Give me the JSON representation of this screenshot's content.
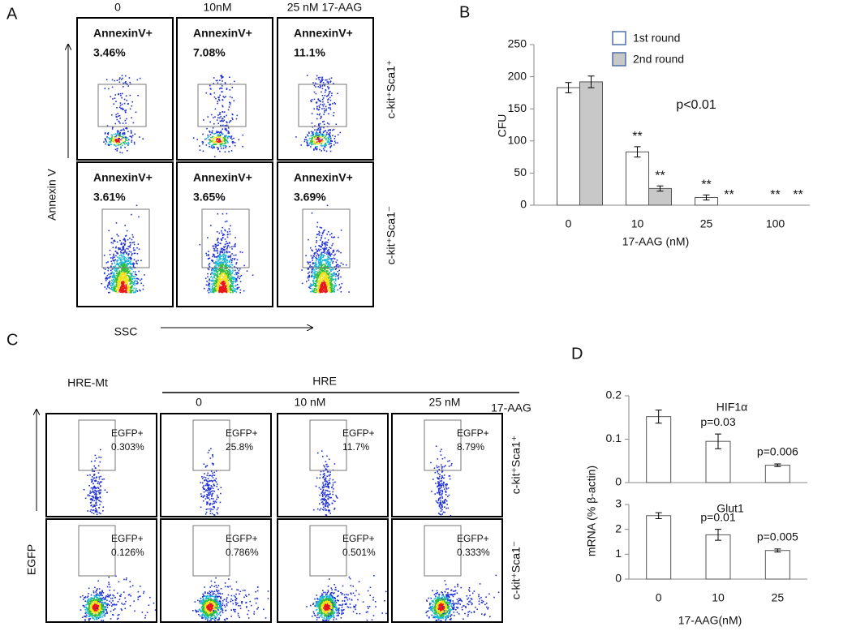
{
  "panel_labels": {
    "a": "A",
    "b": "B",
    "c": "C",
    "d": "D"
  },
  "panel_a": {
    "column_labels": [
      "0",
      "10nM",
      "25 nM 17-AAG"
    ],
    "row_labels": [
      "c-kit⁺Sca1⁺",
      "c-kit⁺Sca1⁻"
    ],
    "y_label": "Annexin V",
    "x_label": "SSC",
    "gates": [
      [
        {
          "label": "AnnexinV+",
          "percent": "3.46%"
        },
        {
          "label": "AnnexinV+",
          "percent": "7.08%"
        },
        {
          "label": "AnnexinV+",
          "percent": "11.1%"
        }
      ],
      [
        {
          "label": "AnnexinV+",
          "percent": "3.61%"
        },
        {
          "label": "AnnexinV+",
          "percent": "3.65%"
        },
        {
          "label": "AnnexinV+",
          "percent": "3.69%"
        }
      ]
    ]
  },
  "panel_c": {
    "group_labels": [
      "HRE-Mt",
      "HRE"
    ],
    "column_labels": [
      "0",
      "10 nM",
      "25 nM"
    ],
    "treatment_label": "17-AAG",
    "row_labels": [
      "c-kit⁺Sca1⁺",
      "c-kit⁺Sca1⁻"
    ],
    "y_label": "EGFP",
    "gates": [
      [
        {
          "label": "EGFP+",
          "percent": "0.303%"
        },
        {
          "label": "EGFP+",
          "percent": "25.8%"
        },
        {
          "label": "EGFP+",
          "percent": "11.7%"
        },
        {
          "label": "EGFP+",
          "percent": "8.79%"
        }
      ],
      [
        {
          "label": "EGFP+",
          "percent": "0.126%"
        },
        {
          "label": "EGFP+",
          "percent": "0.786%"
        },
        {
          "label": "EGFP+",
          "percent": "0.501%"
        },
        {
          "label": "EGFP+",
          "percent": "0.333%"
        }
      ]
    ]
  },
  "chart_data": [
    {
      "type": "bar",
      "y_label": "CFU",
      "x_label": "17-AAG (nM)",
      "annotation": "p<0.01",
      "categories": [
        "0",
        "10",
        "25",
        "100"
      ],
      "series": [
        {
          "name": "1st round",
          "color": "#ffffff",
          "values": [
            183,
            83,
            12,
            0
          ],
          "errors": [
            8,
            8,
            4,
            0
          ],
          "marks": [
            null,
            "**",
            "**",
            "**"
          ]
        },
        {
          "name": "2nd round",
          "color": "#c8c8c8",
          "values": [
            192,
            26,
            0,
            0
          ],
          "errors": [
            9,
            4,
            0,
            0
          ],
          "marks": [
            null,
            "**",
            "**",
            "**"
          ]
        }
      ],
      "ylim": [
        0,
        250
      ],
      "yticks": [
        0,
        50,
        100,
        150,
        200,
        250
      ]
    },
    {
      "type": "bar",
      "title": "HIF1α",
      "y_label": "mRNA (% β-actin)",
      "values": [
        0.152,
        0.095,
        0.04
      ],
      "errors": [
        0.015,
        0.017,
        0.003
      ],
      "p_values": [
        null,
        "p=0.03",
        "p=0.006"
      ],
      "color": "#ffffff",
      "ylim": [
        0,
        0.2
      ],
      "yticks": [
        0,
        0.1,
        0.2
      ]
    },
    {
      "type": "bar",
      "title": "Glut1",
      "x_label": "17-AAG(nM)",
      "categories": [
        "0",
        "10",
        "25"
      ],
      "values": [
        2.55,
        1.78,
        1.15
      ],
      "errors": [
        0.12,
        0.22,
        0.06
      ],
      "p_values": [
        null,
        "p=0.01",
        "p=0.005"
      ],
      "color": "#ffffff",
      "ylim": [
        0,
        3
      ],
      "yticks": [
        0,
        1,
        2,
        3
      ]
    }
  ]
}
